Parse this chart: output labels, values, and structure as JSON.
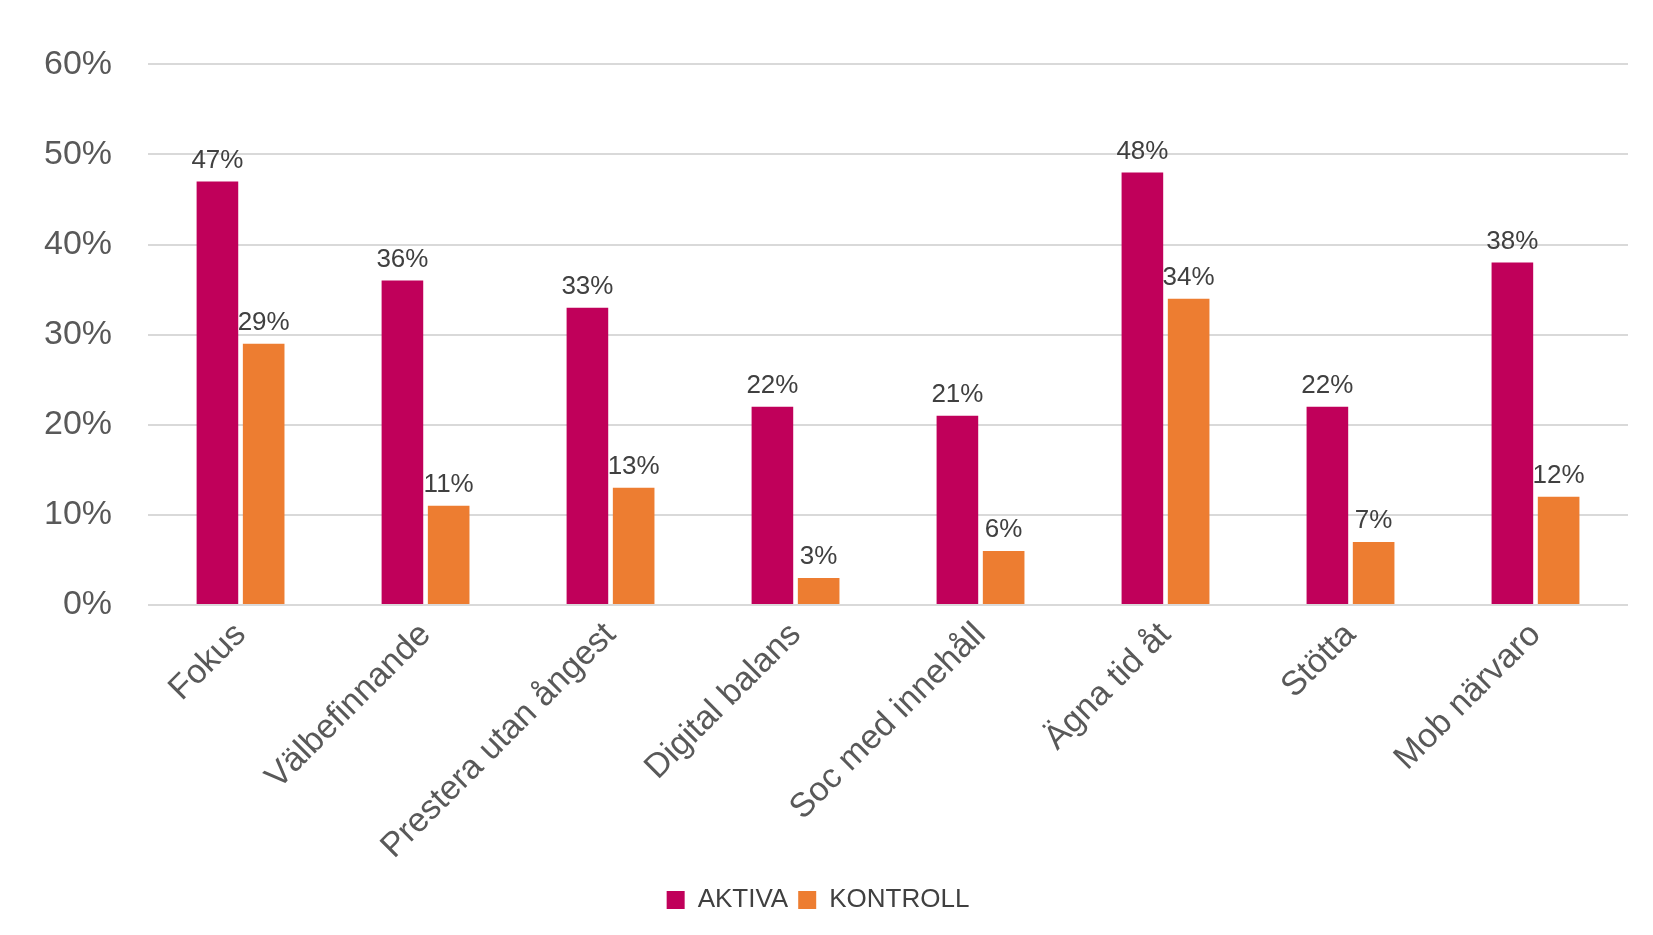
{
  "chart_data": {
    "type": "bar",
    "categories": [
      "Fokus",
      "Välbefinnande",
      "Prestera utan ångest",
      "Digital balans",
      "Soc med innehåll",
      "Ägna tid åt",
      "Stötta",
      "Mob närvaro"
    ],
    "series": [
      {
        "name": "AKTIVA",
        "color": "#c0005a",
        "values": [
          47,
          36,
          33,
          22,
          21,
          48,
          22,
          38
        ],
        "value_labels": [
          "47%",
          "36%",
          "33%",
          "22%",
          "21%",
          "48%",
          "22%",
          "38%"
        ]
      },
      {
        "name": "KONTROLL",
        "color": "#ed7d31",
        "values": [
          29,
          11,
          13,
          3,
          6,
          34,
          7,
          12
        ],
        "value_labels": [
          "29%",
          "11%",
          "13%",
          "3%",
          "6%",
          "34%",
          "7%",
          "12%"
        ]
      }
    ],
    "ylim": [
      0,
      60
    ],
    "yticks": [
      {
        "value": 0,
        "label": "0%"
      },
      {
        "value": 10,
        "label": "10%"
      },
      {
        "value": 20,
        "label": "20%"
      },
      {
        "value": 30,
        "label": "30%"
      },
      {
        "value": 40,
        "label": "40%"
      },
      {
        "value": 50,
        "label": "50%"
      },
      {
        "value": 60,
        "label": "60%"
      }
    ],
    "grid": "y",
    "legend": "bottom"
  }
}
